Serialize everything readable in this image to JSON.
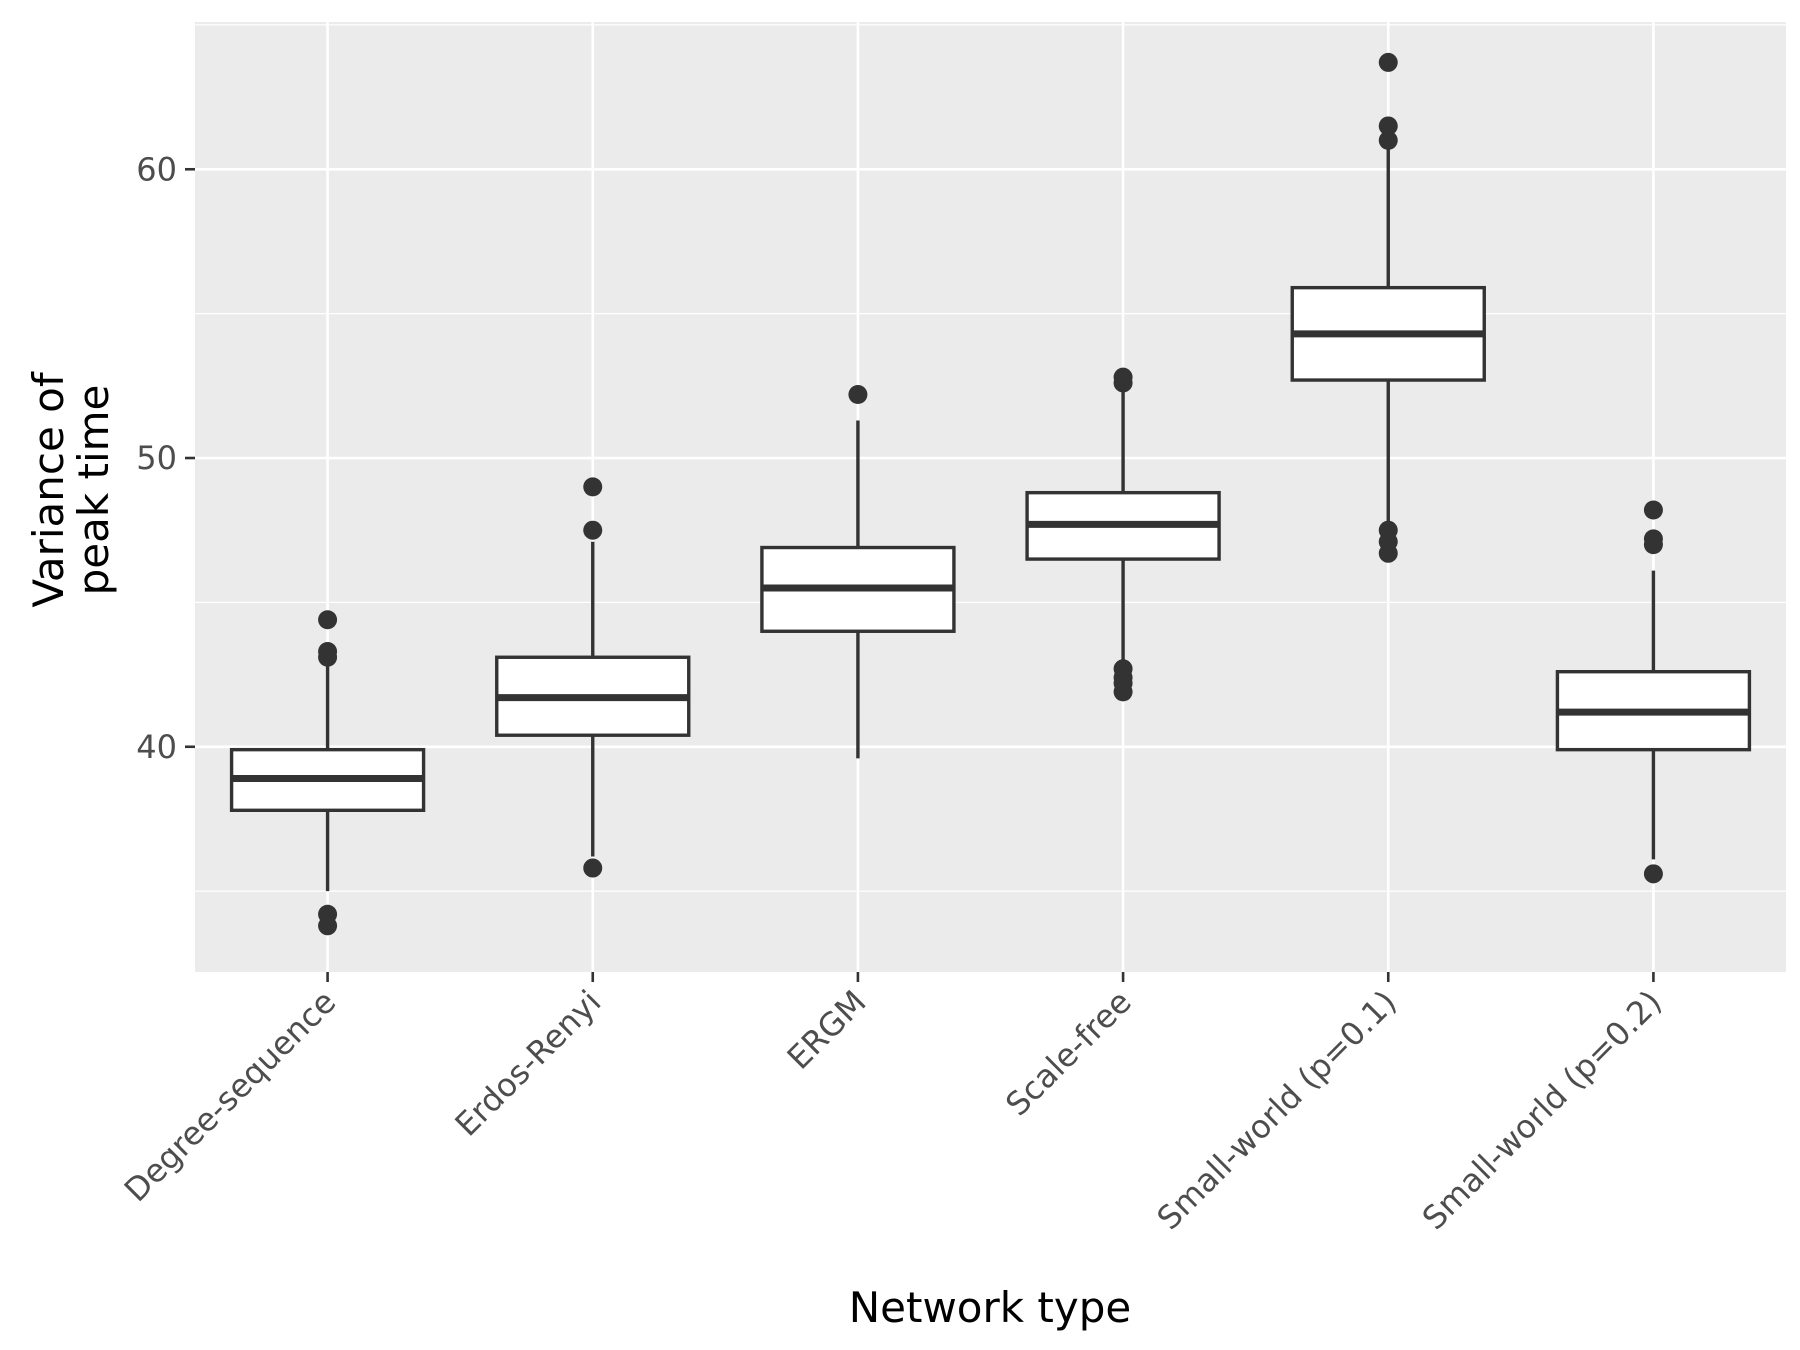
{
  "chart_data": {
    "type": "box",
    "title": "",
    "xlabel": "Network type",
    "ylabel_lines": [
      "Variance of",
      "peak time"
    ],
    "categories": [
      "Degree-sequence",
      "Erdos-Renyi",
      "ERGM",
      "Scale-free",
      "Small-world (p=0.1)",
      "Small-world (p=0.2)"
    ],
    "ylim": [
      32.2,
      65.1
    ],
    "yticks": [
      40,
      50,
      60
    ],
    "minor_yticks": [
      35,
      45,
      55,
      65
    ],
    "grid": true,
    "legend": "none",
    "boxes": [
      {
        "category": "Degree-sequence",
        "min": 35.0,
        "q1": 37.8,
        "median": 38.9,
        "q3": 39.9,
        "max": 42.9,
        "outliers": [
          43.1,
          43.3,
          44.4,
          34.2,
          33.8
        ]
      },
      {
        "category": "Erdos-Renyi",
        "min": 36.2,
        "q1": 40.4,
        "median": 41.7,
        "q3": 43.1,
        "max": 47.1,
        "outliers": [
          47.5,
          49.0,
          35.8
        ]
      },
      {
        "category": "ERGM",
        "min": 39.6,
        "q1": 44.0,
        "median": 45.5,
        "q3": 46.9,
        "max": 51.3,
        "outliers": [
          52.2
        ]
      },
      {
        "category": "Scale-free",
        "min": 43.0,
        "q1": 46.5,
        "median": 47.7,
        "q3": 48.8,
        "max": 52.3,
        "outliers": [
          52.6,
          52.8,
          42.7,
          42.4,
          42.2,
          41.9
        ]
      },
      {
        "category": "Small-world (p=0.1)",
        "min": 47.7,
        "q1": 52.7,
        "median": 54.3,
        "q3": 55.9,
        "max": 60.8,
        "outliers": [
          61.0,
          61.5,
          63.7,
          47.5,
          47.1,
          46.7
        ]
      },
      {
        "category": "Small-world (p=0.2)",
        "min": 36.1,
        "q1": 39.9,
        "median": 41.2,
        "q3": 42.6,
        "max": 46.1,
        "outliers": [
          47.0,
          47.2,
          48.2,
          35.6
        ]
      }
    ],
    "colors": {
      "panel": "#ebebeb",
      "grid": "#ffffff",
      "box_fill": "#ffffff",
      "box_stroke": "#333333",
      "outlier": "#333333",
      "tick_text": "#4d4d4d",
      "title_text": "#000000"
    }
  }
}
